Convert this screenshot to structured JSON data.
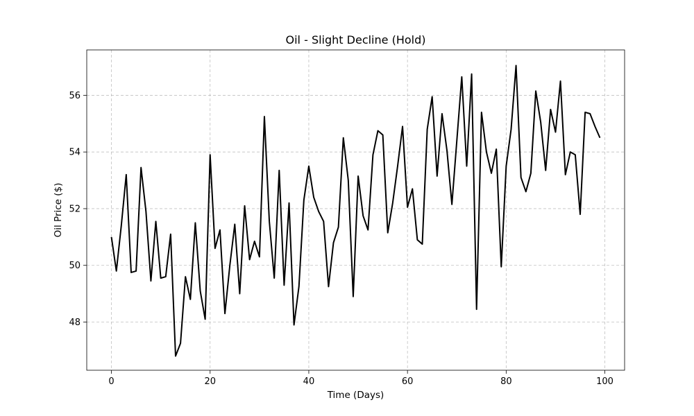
{
  "chart_data": {
    "type": "line",
    "title": "Oil - Slight Decline (Hold)",
    "xlabel": "Time (Days)",
    "ylabel": "Oil Price ($)",
    "xlim": [
      -5,
      104
    ],
    "ylim": [
      46.3,
      57.6
    ],
    "x_ticks": [
      0,
      20,
      40,
      60,
      80,
      100
    ],
    "y_ticks": [
      48,
      50,
      52,
      54,
      56
    ],
    "grid": true,
    "line_color": "#000000",
    "grid_color": "#b0b0b0",
    "series": [
      {
        "x": [
          0,
          1,
          2,
          3,
          4,
          5,
          6,
          7,
          8,
          9,
          10,
          11,
          12,
          13,
          14,
          15,
          16,
          17,
          18,
          19,
          20,
          21,
          22,
          23,
          24,
          25,
          26,
          27,
          28,
          29,
          30,
          31,
          32,
          33,
          34,
          35,
          36,
          37,
          38,
          39,
          40,
          41,
          42,
          43,
          44,
          45,
          46,
          47,
          48,
          49,
          50,
          51,
          52,
          53,
          54,
          55,
          56,
          57,
          58,
          59,
          60,
          61,
          62,
          63,
          64,
          65,
          66,
          67,
          68,
          69,
          70,
          71,
          72,
          73,
          74,
          75,
          76,
          77,
          78,
          79,
          80,
          81,
          82,
          83,
          84,
          85,
          86,
          87,
          88,
          89,
          90,
          91,
          92,
          93,
          94,
          95,
          96,
          97,
          98,
          99
        ],
        "values": [
          51.0,
          49.8,
          51.4,
          53.2,
          49.75,
          49.8,
          53.45,
          51.9,
          49.45,
          51.55,
          49.55,
          49.6,
          51.1,
          46.8,
          47.25,
          49.6,
          48.8,
          51.5,
          49.1,
          48.1,
          53.9,
          50.6,
          51.25,
          48.3,
          50.0,
          51.45,
          49.0,
          52.1,
          50.2,
          50.85,
          50.3,
          55.25,
          51.55,
          49.55,
          53.35,
          49.3,
          52.2,
          47.9,
          49.25,
          52.3,
          53.5,
          52.4,
          51.9,
          51.55,
          49.25,
          50.8,
          51.35,
          54.5,
          53.0,
          48.9,
          53.15,
          51.75,
          51.25,
          53.9,
          54.75,
          54.6,
          51.15,
          52.2,
          53.5,
          54.9,
          52.05,
          52.7,
          50.9,
          50.75,
          54.8,
          55.95,
          53.15,
          55.35,
          54.05,
          52.15,
          54.4,
          56.65,
          53.5,
          56.75,
          48.45,
          55.4,
          54.0,
          53.25,
          54.1,
          49.95,
          53.5,
          54.8,
          57.05,
          53.1,
          52.6,
          53.25,
          56.15,
          55.05,
          53.35,
          55.5,
          54.7,
          56.5,
          53.2,
          54.0,
          53.9,
          51.8,
          55.4,
          55.35,
          54.9,
          54.5
        ]
      }
    ]
  }
}
